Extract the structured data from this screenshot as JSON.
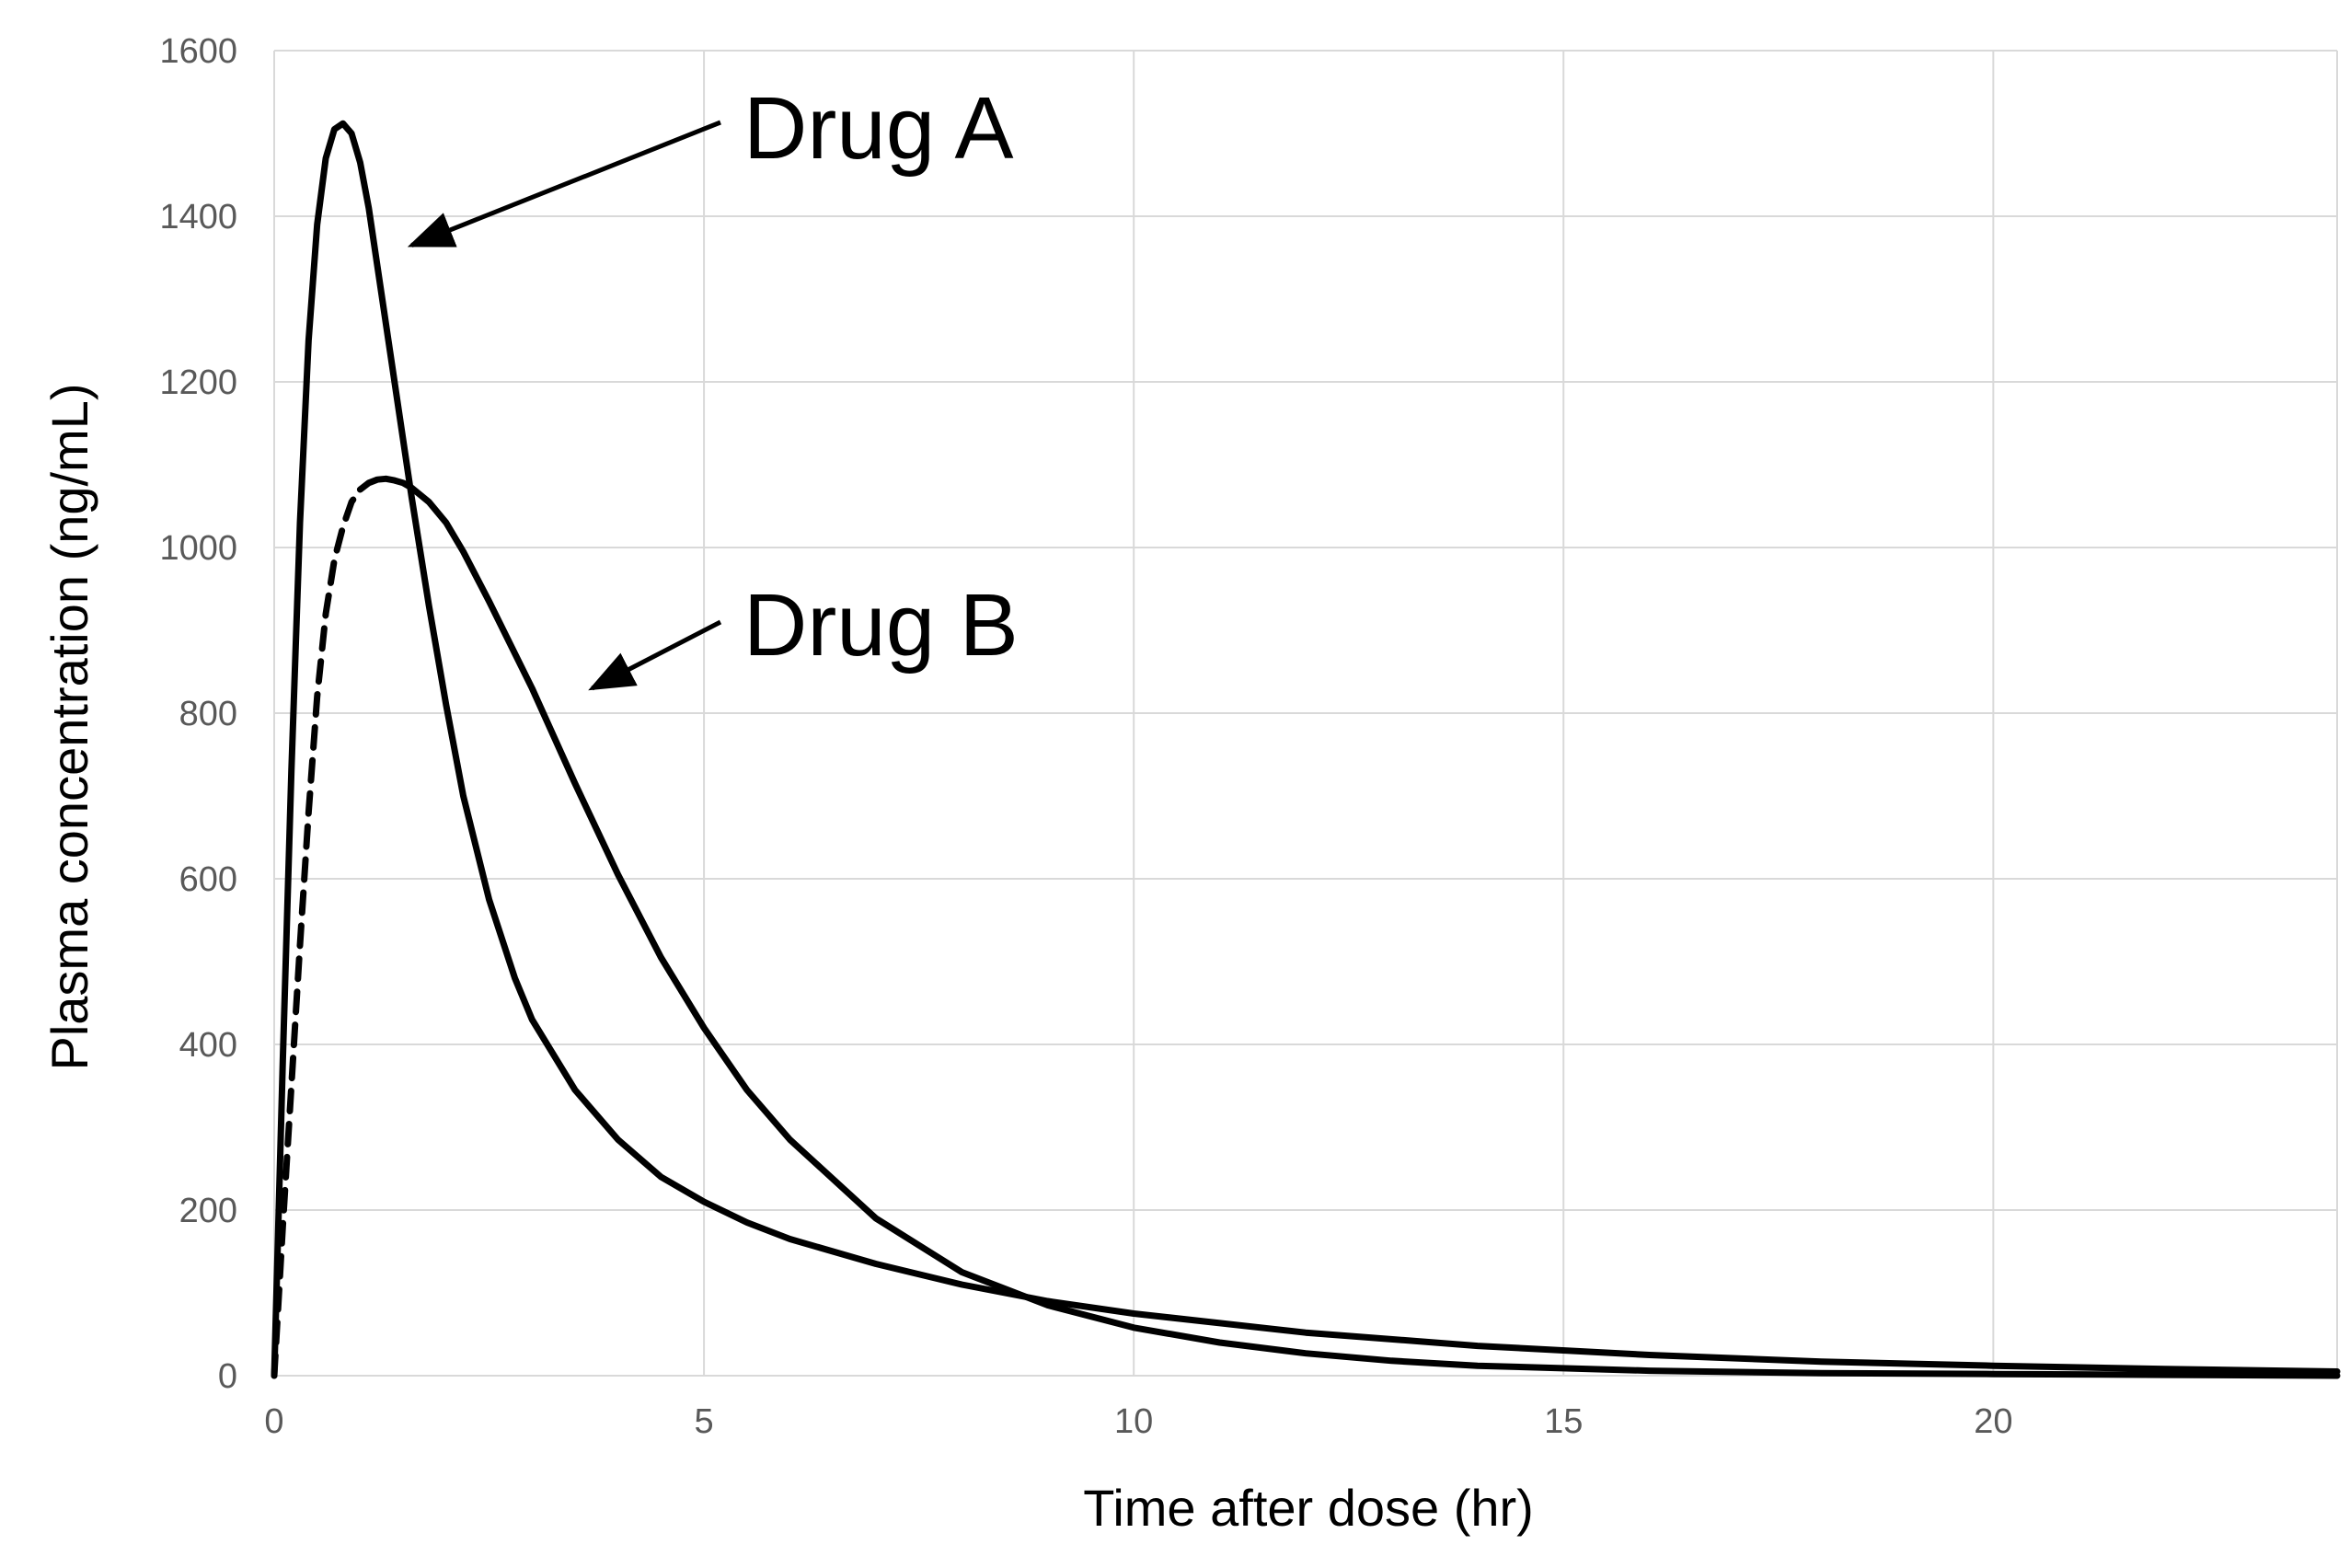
{
  "chart_data": {
    "type": "line",
    "title": "",
    "xlabel": "Time after dose (hr)",
    "ylabel": "Plasma concentration (ng/mL)",
    "xlim": [
      0,
      24
    ],
    "ylim": [
      0,
      1600
    ],
    "x_ticks": [
      0,
      5,
      10,
      15,
      20
    ],
    "y_ticks": [
      0,
      200,
      400,
      600,
      800,
      1000,
      1200,
      1400,
      1600
    ],
    "grid": true,
    "legend": "none",
    "series": [
      {
        "name": "Drug A",
        "style": "solid",
        "color": "#000000",
        "x": [
          0,
          0.1,
          0.2,
          0.3,
          0.4,
          0.5,
          0.6,
          0.7,
          0.8,
          0.9,
          1.0,
          1.1,
          1.2,
          1.4,
          1.6,
          1.8,
          2.0,
          2.2,
          2.5,
          2.8,
          3.0,
          3.5,
          4.0,
          4.5,
          5.0,
          5.5,
          6.0,
          7.0,
          8.0,
          9.0,
          10.0,
          12.0,
          14.0,
          16.0,
          18.0,
          20.0,
          22.0,
          24.0
        ],
        "y": [
          0,
          380,
          730,
          1030,
          1250,
          1390,
          1470,
          1505,
          1512,
          1500,
          1465,
          1410,
          1340,
          1200,
          1060,
          930,
          810,
          700,
          575,
          480,
          430,
          345,
          285,
          240,
          210,
          185,
          165,
          135,
          110,
          90,
          75,
          52,
          36,
          25,
          17,
          12,
          8,
          5
        ]
      },
      {
        "name": "Drug B",
        "style": "solid with dashed rising segment",
        "color": "#000000",
        "dashed_until_x": 1.0,
        "x": [
          0,
          0.1,
          0.2,
          0.3,
          0.4,
          0.5,
          0.6,
          0.7,
          0.8,
          0.9,
          1.0,
          1.1,
          1.2,
          1.3,
          1.4,
          1.5,
          1.6,
          1.8,
          2.0,
          2.2,
          2.5,
          3.0,
          3.5,
          4.0,
          4.5,
          5.0,
          5.5,
          6.0,
          7.0,
          8.0,
          9.0,
          10.0,
          11.0,
          12.0,
          13.0,
          14.0,
          16.0,
          18.0,
          20.0,
          22.0,
          24.0
        ],
        "y": [
          0,
          180,
          350,
          520,
          680,
          820,
          920,
          985,
          1025,
          1055,
          1070,
          1078,
          1082,
          1083,
          1081,
          1078,
          1072,
          1055,
          1030,
          995,
          935,
          830,
          715,
          605,
          505,
          420,
          345,
          285,
          190,
          125,
          85,
          58,
          40,
          27,
          18,
          12,
          6,
          3,
          2,
          1,
          0
        ]
      }
    ],
    "annotations": [
      {
        "text": "Drug A",
        "arrow_to_x": 1.6,
        "arrow_to_y": 1365
      },
      {
        "text": "Drug B",
        "arrow_to_x": 3.7,
        "arrow_to_y": 830
      }
    ]
  }
}
